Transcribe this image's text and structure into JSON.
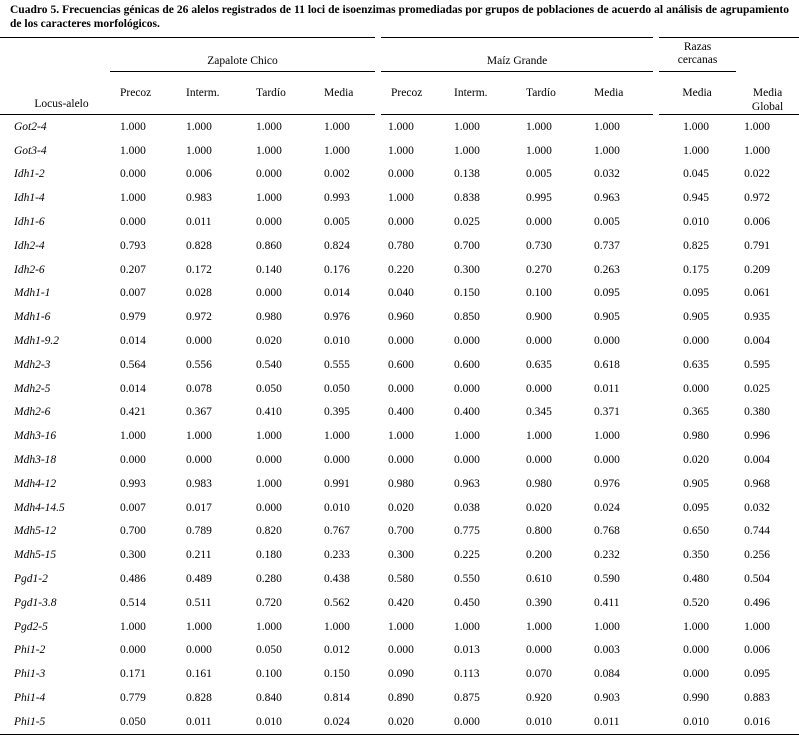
{
  "caption": "Cuadro 5. Frecuencias génicas de 26 alelos registrados de 11 loci de isoenzimas promediadas por grupos de poblaciones de acuerdo al análisis de agrupamiento de los caracteres morfológicos.",
  "table": {
    "groups": [
      "Zapalote Chico",
      "Maíz Grande",
      "Razas cercanas"
    ],
    "columns": [
      "Locus-alelo",
      "Precoz",
      "Interm.",
      "Tardío",
      "Media",
      "Precoz",
      "Interm.",
      "Tardío",
      "Media",
      "Media",
      "Media Global"
    ],
    "rows": [
      [
        "Got2-4",
        "1.000",
        "1.000",
        "1.000",
        "1.000",
        "1.000",
        "1.000",
        "1.000",
        "1.000",
        "1.000",
        "1.000"
      ],
      [
        "Got3-4",
        "1.000",
        "1.000",
        "1.000",
        "1.000",
        "1.000",
        "1.000",
        "1.000",
        "1.000",
        "1.000",
        "1.000"
      ],
      [
        "Idh1-2",
        "0.000",
        "0.006",
        "0.000",
        "0.002",
        "0.000",
        "0.138",
        "0.005",
        "0.032",
        "0.045",
        "0.022"
      ],
      [
        "Idh1-4",
        "1.000",
        "0.983",
        "1.000",
        "0.993",
        "1.000",
        "0.838",
        "0.995",
        "0.963",
        "0.945",
        "0.972"
      ],
      [
        "Idh1-6",
        "0.000",
        "0.011",
        "0.000",
        "0.005",
        "0.000",
        "0.025",
        "0.000",
        "0.005",
        "0.010",
        "0.006"
      ],
      [
        "Idh2-4",
        "0.793",
        "0.828",
        "0.860",
        "0.824",
        "0.780",
        "0.700",
        "0.730",
        "0.737",
        "0.825",
        "0.791"
      ],
      [
        "Idh2-6",
        "0.207",
        "0.172",
        "0.140",
        "0.176",
        "0.220",
        "0.300",
        "0.270",
        "0.263",
        "0.175",
        "0.209"
      ],
      [
        "Mdh1-1",
        "0.007",
        "0.028",
        "0.000",
        "0.014",
        "0.040",
        "0.150",
        "0.100",
        "0.095",
        "0.095",
        "0.061"
      ],
      [
        "Mdh1-6",
        "0.979",
        "0.972",
        "0.980",
        "0.976",
        "0.960",
        "0.850",
        "0.900",
        "0.905",
        "0.905",
        "0.935"
      ],
      [
        "Mdh1-9.2",
        "0.014",
        "0.000",
        "0.020",
        "0.010",
        "0.000",
        "0.000",
        "0.000",
        "0.000",
        "0.000",
        "0.004"
      ],
      [
        "Mdh2-3",
        "0.564",
        "0.556",
        "0.540",
        "0.555",
        "0.600",
        "0.600",
        "0.635",
        "0.618",
        "0.635",
        "0.595"
      ],
      [
        "Mdh2-5",
        "0.014",
        "0.078",
        "0.050",
        "0.050",
        "0.000",
        "0.000",
        "0.000",
        "0.011",
        "0.000",
        "0.025"
      ],
      [
        "Mdh2-6",
        "0.421",
        "0.367",
        "0.410",
        "0.395",
        "0.400",
        "0.400",
        "0.345",
        "0.371",
        "0.365",
        "0.380"
      ],
      [
        "Mdh3-16",
        "1.000",
        "1.000",
        "1.000",
        "1.000",
        "1.000",
        "1.000",
        "1.000",
        "1.000",
        "0.980",
        "0.996"
      ],
      [
        "Mdh3-18",
        "0.000",
        "0.000",
        "0.000",
        "0.000",
        "0.000",
        "0.000",
        "0.000",
        "0.000",
        "0.020",
        "0.004"
      ],
      [
        "Mdh4-12",
        "0.993",
        "0.983",
        "1.000",
        "0.991",
        "0.980",
        "0.963",
        "0.980",
        "0.976",
        "0.905",
        "0.968"
      ],
      [
        "Mdh4-14.5",
        "0.007",
        "0.017",
        "0.000",
        "0.010",
        "0.020",
        "0.038",
        "0.020",
        "0.024",
        "0.095",
        "0.032"
      ],
      [
        "Mdh5-12",
        "0.700",
        "0.789",
        "0.820",
        "0.767",
        "0.700",
        "0.775",
        "0.800",
        "0.768",
        "0.650",
        "0.744"
      ],
      [
        "Mdh5-15",
        "0.300",
        "0.211",
        "0.180",
        "0.233",
        "0.300",
        "0.225",
        "0.200",
        "0.232",
        "0.350",
        "0.256"
      ],
      [
        "Pgd1-2",
        "0.486",
        "0.489",
        "0.280",
        "0.438",
        "0.580",
        "0.550",
        "0.610",
        "0.590",
        "0.480",
        "0.504"
      ],
      [
        "Pgd1-3.8",
        "0.514",
        "0.511",
        "0.720",
        "0.562",
        "0.420",
        "0.450",
        "0.390",
        "0.411",
        "0.520",
        "0.496"
      ],
      [
        "Pgd2-5",
        "1.000",
        "1.000",
        "1.000",
        "1.000",
        "1.000",
        "1.000",
        "1.000",
        "1.000",
        "1.000",
        "1.000"
      ],
      [
        "Phi1-2",
        "0.000",
        "0.000",
        "0.050",
        "0.012",
        "0.000",
        "0.013",
        "0.000",
        "0.003",
        "0.000",
        "0.006"
      ],
      [
        "Phi1-3",
        "0.171",
        "0.161",
        "0.100",
        "0.150",
        "0.090",
        "0.113",
        "0.070",
        "0.084",
        "0.000",
        "0.095"
      ],
      [
        "Phi1-4",
        "0.779",
        "0.828",
        "0.840",
        "0.814",
        "0.890",
        "0.875",
        "0.920",
        "0.903",
        "0.990",
        "0.883"
      ],
      [
        "Phi1-5",
        "0.050",
        "0.011",
        "0.010",
        "0.024",
        "0.020",
        "0.000",
        "0.010",
        "0.011",
        "0.010",
        "0.016"
      ]
    ]
  }
}
